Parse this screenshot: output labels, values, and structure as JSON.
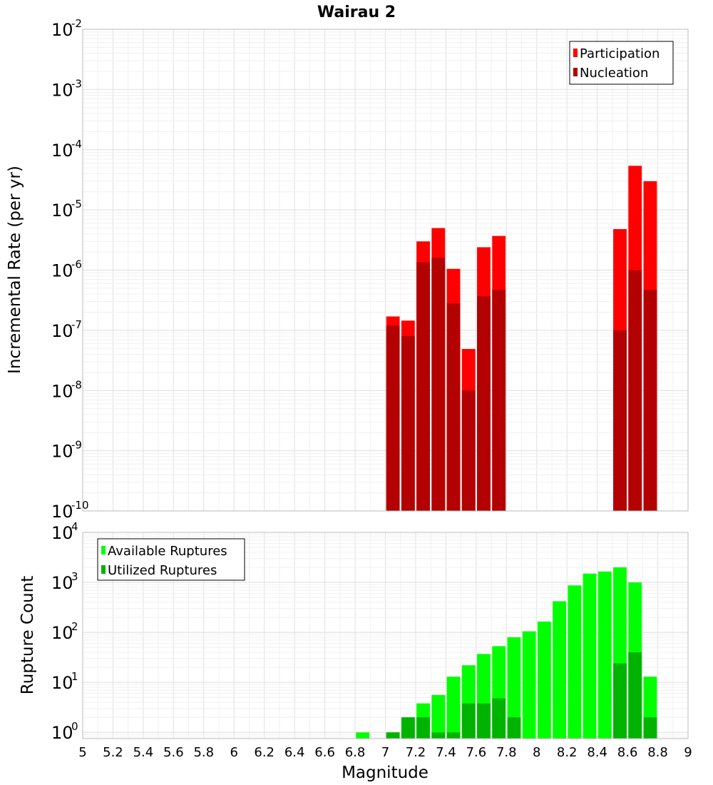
{
  "title": "Wairau 2",
  "x_axis": {
    "label": "Magnitude",
    "ticks": [
      "5",
      "5.2",
      "5.4",
      "5.6",
      "5.8",
      "6",
      "6.2",
      "6.4",
      "6.6",
      "6.8",
      "7",
      "7.2",
      "7.4",
      "7.6",
      "7.8",
      "8",
      "8.2",
      "8.4",
      "8.6",
      "8.8",
      "9"
    ]
  },
  "colors": {
    "participation": "#ff0000",
    "nucleation": "#b30000",
    "available": "#00ff00",
    "utilized": "#00b300",
    "grid": "#e6e6e6",
    "frame": "#bbbbbb"
  },
  "chart_data": [
    {
      "type": "bar",
      "title": "Wairau 2",
      "xlabel": "Magnitude",
      "ylabel": "Incremental Rate (per yr)",
      "xlim": [
        5,
        9
      ],
      "ylim": [
        1e-10,
        0.01
      ],
      "y_scale": "log",
      "y_ticks": [
        {
          "base": "10",
          "exp": "-2",
          "value": 0.01
        },
        {
          "base": "10",
          "exp": "-3",
          "value": 0.001
        },
        {
          "base": "10",
          "exp": "-4",
          "value": 0.0001
        },
        {
          "base": "10",
          "exp": "-5",
          "value": 1e-05
        },
        {
          "base": "10",
          "exp": "-6",
          "value": 1e-06
        },
        {
          "base": "10",
          "exp": "-7",
          "value": 1e-07
        },
        {
          "base": "10",
          "exp": "-8",
          "value": 1e-08
        },
        {
          "base": "10",
          "exp": "-9",
          "value": 1e-09
        },
        {
          "base": "10",
          "exp": "-10",
          "value": 1e-10
        }
      ],
      "grid": true,
      "legend_position": "top-right",
      "x": [
        7.05,
        7.15,
        7.25,
        7.35,
        7.45,
        7.55,
        7.65,
        7.75,
        8.55,
        8.65,
        8.75
      ],
      "series": [
        {
          "name": "Participation",
          "color": "#ff0000",
          "values": [
            1.7e-07,
            1.45e-07,
            3e-06,
            5e-06,
            1.05e-06,
            4.9e-08,
            2.4e-06,
            3.7e-06,
            4.8e-06,
            5.4e-05,
            3e-05
          ]
        },
        {
          "name": "Nucleation",
          "color": "#b30000",
          "values": [
            1.2e-07,
            8e-08,
            1.35e-06,
            1.6e-06,
            2.8e-07,
            1e-08,
            3.7e-07,
            4.7e-07,
            1e-07,
            1e-06,
            4.7e-07
          ]
        }
      ]
    },
    {
      "type": "bar",
      "xlabel": "Magnitude",
      "ylabel": "Rupture Count",
      "xlim": [
        5,
        9
      ],
      "ylim": [
        0.75,
        10000.0
      ],
      "y_scale": "log",
      "y_ticks": [
        {
          "base": "10",
          "exp": "4",
          "value": 10000.0
        },
        {
          "base": "10",
          "exp": "3",
          "value": 1000.0
        },
        {
          "base": "10",
          "exp": "2",
          "value": 100.0
        },
        {
          "base": "10",
          "exp": "1",
          "value": 10.0
        },
        {
          "base": "10",
          "exp": "0",
          "value": 1
        }
      ],
      "grid": true,
      "legend_position": "top-left",
      "x": [
        6.85,
        7.05,
        7.15,
        7.25,
        7.35,
        7.45,
        7.55,
        7.65,
        7.75,
        7.85,
        7.95,
        8.05,
        8.15,
        8.25,
        8.35,
        8.45,
        8.55,
        8.65,
        8.75
      ],
      "series": [
        {
          "name": "Available Ruptures",
          "color": "#00ff00",
          "values": [
            1,
            1,
            2,
            3.8,
            5.6,
            13,
            22,
            37,
            53,
            80,
            105,
            165,
            420,
            870,
            1500,
            1650,
            2000,
            1000,
            13
          ]
        },
        {
          "name": "Utilized Ruptures",
          "color": "#00b300",
          "values": [
            0,
            1,
            2,
            2,
            1,
            1,
            3.8,
            3.8,
            4.8,
            2,
            0,
            0,
            0,
            0,
            0,
            0,
            24,
            40,
            2
          ]
        }
      ]
    }
  ]
}
